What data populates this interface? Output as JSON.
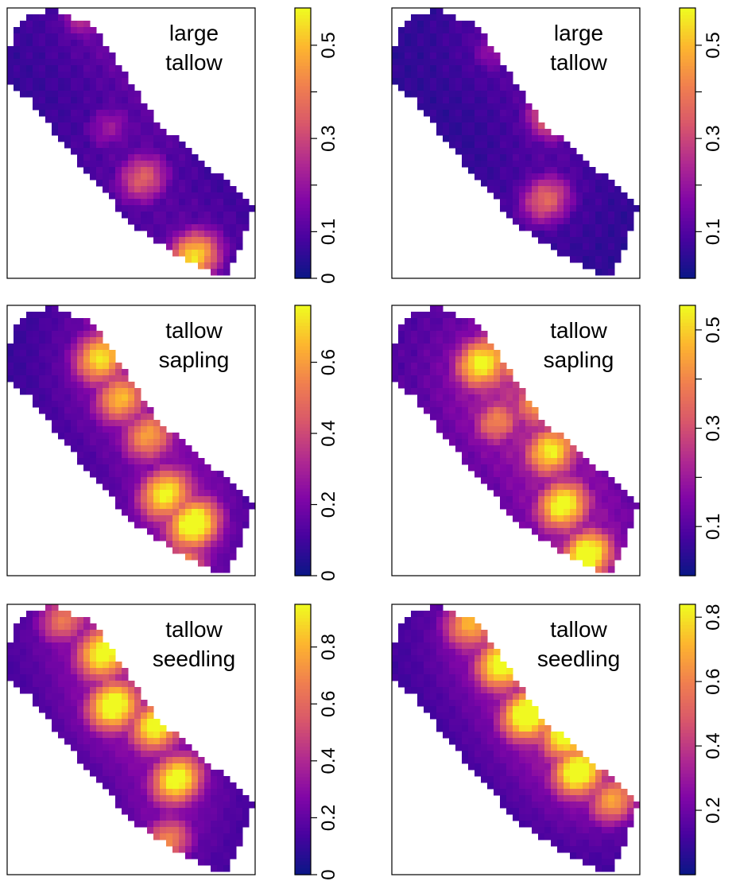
{
  "colors": {
    "palette": [
      "#0c1687",
      "#47039f",
      "#8106a7",
      "#b12a90",
      "#d8576b",
      "#f07f4f",
      "#fdb42f",
      "#f0f921"
    ],
    "axis": "#000000",
    "background": "#ffffff"
  },
  "chart_data": [
    {
      "type": "heatmap",
      "label_lines": [
        "large",
        "tallow"
      ],
      "colorbar": {
        "range": [
          0,
          0.58
        ],
        "tick_labels": [
          "0",
          "0.1",
          "0.3",
          "0.5"
        ],
        "tick_values": [
          0,
          0.1,
          0.3,
          0.5
        ],
        "minor_tick_values": [
          0.2,
          0.4
        ]
      },
      "field": {
        "base": 0.06,
        "hotspots": [
          [
            0.3,
            0.1,
            0.35
          ],
          [
            0.36,
            0.2,
            0.5
          ],
          [
            0.18,
            0.3,
            0.25
          ],
          [
            0.55,
            0.3,
            0.22
          ],
          [
            0.62,
            0.7,
            0.3
          ],
          [
            0.88,
            0.82,
            0.48
          ],
          [
            0.45,
            0.62,
            0.18
          ]
        ]
      }
    },
    {
      "type": "heatmap",
      "label_lines": [
        "large",
        "tallow"
      ],
      "colorbar": {
        "range": [
          0,
          0.58
        ],
        "tick_labels": [
          "0.1",
          "0.3",
          "0.5"
        ],
        "tick_values": [
          0.1,
          0.3,
          0.5
        ],
        "minor_tick_values": [
          0.2,
          0.4
        ]
      },
      "field": {
        "base": 0.05,
        "hotspots": [
          [
            0.25,
            0.2,
            0.22
          ],
          [
            0.4,
            0.15,
            0.3
          ],
          [
            0.55,
            0.4,
            0.4
          ],
          [
            0.7,
            0.72,
            0.32
          ],
          [
            0.3,
            0.35,
            0.18
          ]
        ]
      }
    },
    {
      "type": "heatmap",
      "label_lines": [
        "tallow",
        "sapling"
      ],
      "colorbar": {
        "range": [
          0,
          0.76
        ],
        "tick_labels": [
          "0",
          "0.2",
          "0.4",
          "0.6"
        ],
        "tick_values": [
          0,
          0.2,
          0.4,
          0.6
        ],
        "minor_tick_values": []
      },
      "field": {
        "base": 0.08,
        "hotspots": [
          [
            0.3,
            0.42,
            0.6
          ],
          [
            0.42,
            0.5,
            0.55
          ],
          [
            0.55,
            0.55,
            0.5
          ],
          [
            0.7,
            0.7,
            0.62
          ],
          [
            0.82,
            0.72,
            0.74
          ],
          [
            0.65,
            0.35,
            0.4
          ],
          [
            0.2,
            0.25,
            0.3
          ],
          [
            0.88,
            0.9,
            0.55
          ]
        ]
      }
    },
    {
      "type": "heatmap",
      "label_lines": [
        "tallow",
        "sapling"
      ],
      "colorbar": {
        "range": [
          0,
          0.55
        ],
        "tick_labels": [
          "0.1",
          "0.3",
          "0.5"
        ],
        "tick_values": [
          0.1,
          0.3,
          0.5
        ],
        "minor_tick_values": [
          0.2,
          0.4
        ]
      },
      "field": {
        "base": 0.09,
        "hotspots": [
          [
            0.3,
            0.45,
            0.45
          ],
          [
            0.38,
            0.3,
            0.52
          ],
          [
            0.5,
            0.4,
            0.4
          ],
          [
            0.62,
            0.55,
            0.45
          ],
          [
            0.75,
            0.7,
            0.5
          ],
          [
            0.9,
            0.8,
            0.55
          ],
          [
            0.45,
            0.6,
            0.35
          ]
        ]
      }
    },
    {
      "type": "heatmap",
      "label_lines": [
        "tallow",
        "seedling"
      ],
      "colorbar": {
        "range": [
          0,
          0.95
        ],
        "tick_labels": [
          "0",
          "0.2",
          "0.4",
          "0.6",
          "0.8"
        ],
        "tick_values": [
          0,
          0.2,
          0.4,
          0.6,
          0.8
        ],
        "minor_tick_values": []
      },
      "field": {
        "base": 0.12,
        "hotspots": [
          [
            0.3,
            0.4,
            0.8
          ],
          [
            0.42,
            0.55,
            0.9
          ],
          [
            0.55,
            0.5,
            0.85
          ],
          [
            0.7,
            0.62,
            0.88
          ],
          [
            0.15,
            0.4,
            0.55
          ],
          [
            0.8,
            0.85,
            0.6
          ],
          [
            0.25,
            0.2,
            0.5
          ]
        ]
      }
    },
    {
      "type": "heatmap",
      "label_lines": [
        "tallow",
        "seedling"
      ],
      "colorbar": {
        "range": [
          0,
          0.84
        ],
        "tick_labels": [
          "0.2",
          "0.4",
          "0.6",
          "0.8"
        ],
        "tick_values": [
          0.2,
          0.4,
          0.6,
          0.8
        ],
        "minor_tick_values": []
      },
      "field": {
        "base": 0.1,
        "hotspots": [
          [
            0.2,
            0.35,
            0.55
          ],
          [
            0.35,
            0.4,
            0.75
          ],
          [
            0.5,
            0.5,
            0.82
          ],
          [
            0.62,
            0.45,
            0.8
          ],
          [
            0.72,
            0.55,
            0.82
          ],
          [
            0.85,
            0.55,
            0.6
          ],
          [
            0.28,
            0.25,
            0.6
          ]
        ]
      }
    }
  ]
}
